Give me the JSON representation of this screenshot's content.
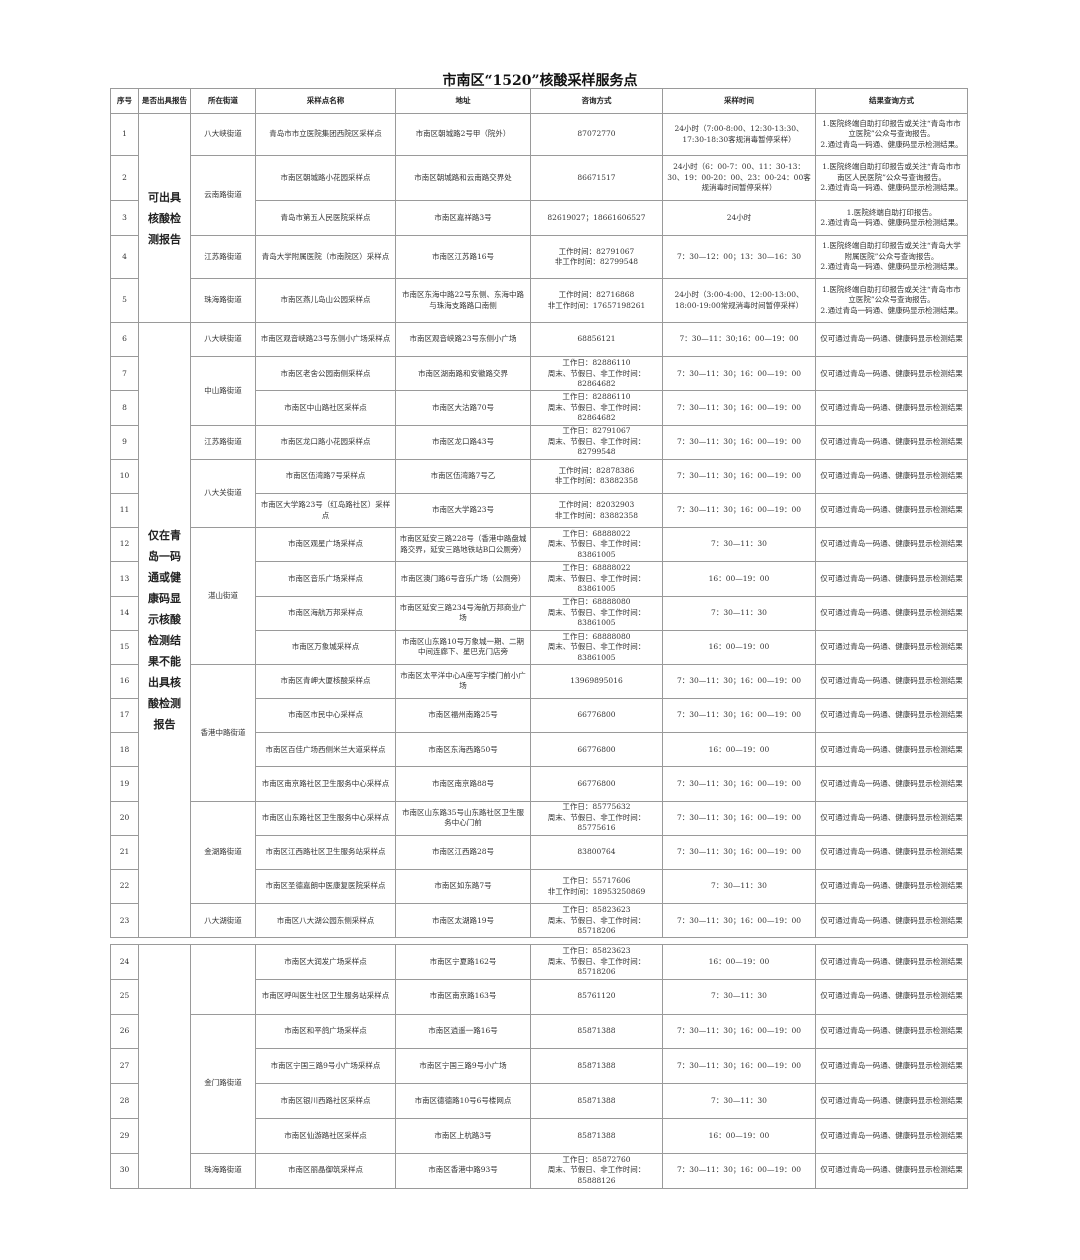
{
  "title": "市南区“1520”核酸采样服务点",
  "headers": [
    "序号",
    "是否出具报告",
    "所在街道",
    "采样点名称",
    "地址",
    "咨询方式",
    "采样时间",
    "结果查询方式"
  ],
  "tables": [
    {
      "report_groups": [
        {
          "text": "可出具核酸检测报告",
          "rows": 5
        },
        {
          "text": "仅在青岛一码通或健康码显示核酸检测结果不能出具核酸检测报告",
          "rows": 18
        }
      ],
      "streets": [
        {
          "text": "八大峡街道",
          "rows": 1
        },
        {
          "text": "云南路街道",
          "rows": 2
        },
        {
          "text": "江苏路街道",
          "rows": 1
        },
        {
          "text": "珠海路街道",
          "rows": 1
        },
        {
          "text": "八大峡街道",
          "rows": 1
        },
        {
          "text": "中山路街道",
          "rows": 2
        },
        {
          "text": "江苏路街道",
          "rows": 1
        },
        {
          "text": "八大关街道",
          "rows": 2
        },
        {
          "text": "湛山街道",
          "rows": 4
        },
        {
          "text": "香港中路街道",
          "rows": 4
        },
        {
          "text": "金湖路街道",
          "rows": 3
        },
        {
          "text": "八大湖街道",
          "rows": 1
        }
      ],
      "rows": [
        {
          "no": "1",
          "name": "青岛市市立医院集团西院区采样点",
          "address": "市南区朝城路2号甲（院外）",
          "contact": "87072770",
          "time": "24小时（7:00-8:00、12:30-13:30、17:30-18:30客规消毒暂停采样）",
          "result": "1.医院终端自助打印报告或关注“青岛市市立医院”公众号查询报告。\n2.通过青岛一码通、健康码显示检测结果。"
        },
        {
          "no": "2",
          "name": "市南区朝城路小花园采样点",
          "address": "市南区朝城路和云南路交界处",
          "contact": "86671517",
          "time": "24小时（6：00-7：00、11：30-13：30、19：00-20：00、23：00-24：00客规消毒时间暂停采样）",
          "result": "1.医院终端自助打印报告或关注“青岛市市南区人民医院”公众号查询报告。\n2.通过青岛一码通、健康码显示检测结果。"
        },
        {
          "no": "3",
          "name": "青岛市第五人民医院采样点",
          "address": "市南区嘉祥路3号",
          "contact": "82619027；18661606527",
          "time": "24小时",
          "result": "1.医院终端自助打印报告。\n2.通过青岛一码通、健康码显示检测结果。"
        },
        {
          "no": "4",
          "name": "青岛大学附属医院（市南院区）采样点",
          "address": "市南区江苏路16号",
          "contact": "工作时间：82791067\n非工作时间：82799548",
          "time": "7：30—12：00；13：30—16：30",
          "result": "1.医院终端自助打印报告或关注“青岛大学附属医院”公众号查询报告。\n2.通过青岛一码通、健康码显示检测结果。"
        },
        {
          "no": "5",
          "name": "市南区燕儿岛山公园采样点",
          "address": "市南区东海中路22号东侧、东海中路与珠海支路路口南侧",
          "contact": "工作时间：82716868\n非工作时间：17657198261",
          "time": "24小时（3:00-4:00、12:00-13:00、18:00-19:00常规消毒时间暂停采样）",
          "result": "1.医院终端自助打印报告或关注“青岛市市立医院”公众号查询报告。\n2.通过青岛一码通、健康码显示检测结果。"
        },
        {
          "no": "6",
          "name": "市南区观音峡路23号东侧小广场采样点",
          "address": "市南区观音峡路23号东侧小广场",
          "contact": "68856121",
          "time": "7：30—11：30;16：00—19：00",
          "result": "仅可通过青岛一码通、健康码显示检测结果"
        },
        {
          "no": "7",
          "name": "市南区老舍公园南侧采样点",
          "address": "市南区湖南路和安徽路交界",
          "contact": "工作日：82886110\n周末、节假日、非工作时间：82864682",
          "time": "7：30—11：30；16：00—19：00",
          "result": "仅可通过青岛一码通、健康码显示检测结果"
        },
        {
          "no": "8",
          "name": "市南区中山路社区采样点",
          "address": "市南区大沽路70号",
          "contact": "工作日：82886110\n周末、节假日、非工作时间：82864682",
          "time": "7：30—11：30；16：00—19：00",
          "result": "仅可通过青岛一码通、健康码显示检测结果"
        },
        {
          "no": "9",
          "name": "市南区龙口路小花园采样点",
          "address": "市南区龙口路43号",
          "contact": "工作日：82791067\n周末、节假日、非工作时间：82799548",
          "time": "7：30—11：30；16：00—19：00",
          "result": "仅可通过青岛一码通、健康码显示检测结果"
        },
        {
          "no": "10",
          "name": "市南区伍湾路7号采样点",
          "address": "市南区伍湾路7号乙",
          "contact": "工作时间：82878386\n非工作时间：83882358",
          "time": "7：30—11：30；16：00—19：00",
          "result": "仅可通过青岛一码通、健康码显示检测结果"
        },
        {
          "no": "11",
          "name": "市南区大学路23号（红岛路社区）采样点",
          "address": "市南区大学路23号",
          "contact": "工作时间：82032903\n非工作时间：83882358",
          "time": "7：30—11：30；16：00—19：00",
          "result": "仅可通过青岛一码通、健康码显示检测结果"
        },
        {
          "no": "12",
          "name": "市南区观星广场采样点",
          "address": "市南区延安三路228号（香港中路盘城路交界，延安三路地铁站B口公厕旁）",
          "contact": "工作日：68888022\n周末、节假日、非工作时间：83861005",
          "time": "7：30—11：30",
          "result": "仅可通过青岛一码通、健康码显示检测结果"
        },
        {
          "no": "13",
          "name": "市南区音乐广场采样点",
          "address": "市南区澳门路6号音乐广场（公厕旁）",
          "contact": "工作日：68888022\n周末、节假日、非工作时间：83861005",
          "time": "16：00—19：00",
          "result": "仅可通过青岛一码通、健康码显示检测结果"
        },
        {
          "no": "14",
          "name": "市南区海航万邦采样点",
          "address": "市南区延安三路234号海航万邦商业广场",
          "contact": "工作日：68888080\n周末、节假日、非工作时间：83861005",
          "time": "7：30—11：30",
          "result": "仅可通过青岛一码通、健康码显示检测结果"
        },
        {
          "no": "15",
          "name": "市南区万象城采样点",
          "address": "市南区山东路10号万象城一期、二期中间连廊下、星巴克门店旁",
          "contact": "工作日：68888080\n周末、节假日、非工作时间：83861005",
          "time": "16：00—19：00",
          "result": "仅可通过青岛一码通、健康码显示检测结果"
        },
        {
          "no": "16",
          "name": "市南区青岬大厦核酸采样点",
          "address": "市南区太平洋中心A座写字楼门前小广场",
          "contact": "13969895016",
          "time": "7：30—11：30；16：00—19：00",
          "result": "仅可通过青岛一码通、健康码显示检测结果"
        },
        {
          "no": "17",
          "name": "市南区市民中心采样点",
          "address": "市南区福州南路25号",
          "contact": "66776800",
          "time": "7：30—11：30；16：00—19：00",
          "result": "仅可通过青岛一码通、健康码显示检测结果"
        },
        {
          "no": "18",
          "name": "市南区百佳广场西侧米兰大道采样点",
          "address": "市南区东海西路50号",
          "contact": "66776800",
          "time": "16：00—19：00",
          "result": "仅可通过青岛一码通、健康码显示检测结果"
        },
        {
          "no": "19",
          "name": "市南区南京路社区卫生服务中心采样点",
          "address": "市南区南京路88号",
          "contact": "66776800",
          "time": "7：30—11：30；16：00—19：00",
          "result": "仅可通过青岛一码通、健康码显示检测结果"
        },
        {
          "no": "20",
          "name": "市南区山东路社区卫生服务中心采样点",
          "address": "市南区山东路35号山东路社区卫生服务中心门前",
          "contact": "工作日：85775632\n周末、节假日、非工作时间：85775616",
          "time": "7：30—11：30；16：00—19：00",
          "result": "仅可通过青岛一码通、健康码显示检测结果"
        },
        {
          "no": "21",
          "name": "市南区江西路社区卫生服务站采样点",
          "address": "市南区江西路28号",
          "contact": "83800764",
          "time": "7：30—11：30；16：00—19：00",
          "result": "仅可通过青岛一码通、健康码显示检测结果"
        },
        {
          "no": "22",
          "name": "市南区圣德嘉朗中医康复医院采样点",
          "address": "市南区如东路7号",
          "contact": "工作日：55717606\n非工作时间：18953250869",
          "time": "7：30—11：30",
          "result": "仅可通过青岛一码通、健康码显示检测结果"
        },
        {
          "no": "23",
          "name": "市南区八大湖公园东侧采样点",
          "address": "市南区太湖路19号",
          "contact": "工作日：85823623\n周末、节假日、非工作时间：85718206",
          "time": "7：30—11：30；16：00—19：00",
          "result": "仅可通过青岛一码通、健康码显示检测结果"
        }
      ]
    },
    {
      "report_groups": [
        {
          "text": "",
          "rows": 7
        }
      ],
      "streets": [
        {
          "text": "",
          "rows": 2
        },
        {
          "text": "金门路街道",
          "rows": 4
        },
        {
          "text": "珠海路街道",
          "rows": 1
        }
      ],
      "rows": [
        {
          "no": "24",
          "name": "市南区大润发广场采样点",
          "address": "市南区宁夏路162号",
          "contact": "工作日：85823623\n周末、节假日、非工作时间：85718206",
          "time": "16：00—19：00",
          "result": "仅可通过青岛一码通、健康码显示检测结果"
        },
        {
          "no": "25",
          "name": "市南区呼叫医生社区卫生服务站采样点",
          "address": "市南区南京路163号",
          "contact": "85761120",
          "time": "7：30—11：30",
          "result": "仅可通过青岛一码通、健康码显示检测结果"
        },
        {
          "no": "26",
          "name": "市南区和平鸽广场采样点",
          "address": "市南区逍遥一路16号",
          "contact": "85871388",
          "time": "7：30—11：30；16：00—19：00",
          "result": "仅可通过青岛一码通、健康码显示检测结果"
        },
        {
          "no": "27",
          "name": "市南区宁国三路9号小广场采样点",
          "address": "市南区宁国三路9号小广场",
          "contact": "85871388",
          "time": "7：30—11：30；16：00—19：00",
          "result": "仅可通过青岛一码通、健康码显示检测结果"
        },
        {
          "no": "28",
          "name": "市南区银川西路社区采样点",
          "address": "市南区德德路10号6号楼网点",
          "contact": "85871388",
          "time": "7：30—11：30",
          "result": "仅可通过青岛一码通、健康码显示检测结果"
        },
        {
          "no": "29",
          "name": "市南区仙游路社区采样点",
          "address": "市南区上杭路3号",
          "contact": "85871388",
          "time": "16：00—19：00",
          "result": "仅可通过青岛一码通、健康码显示检测结果"
        },
        {
          "no": "30",
          "name": "市南区丽晶御筑采样点",
          "address": "市南区香港中路93号",
          "contact": "工作日：85872760\n周末、节假日、非工作时间：85888126",
          "time": "7：30—11：30；16：00—19：00",
          "result": "仅可通过青岛一码通、健康码显示检测结果"
        }
      ]
    }
  ]
}
